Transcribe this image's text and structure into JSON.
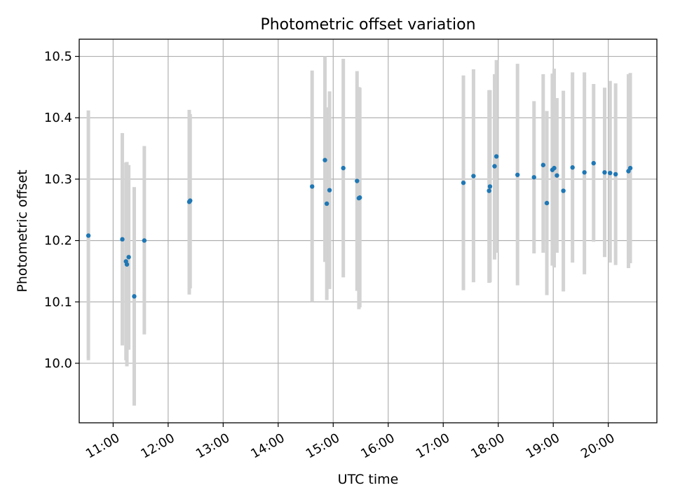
{
  "chart_data": {
    "type": "scatter",
    "title": "Photometric offset variation",
    "xlabel": "UTC time",
    "ylabel": "Photometric offset",
    "x_ticks": [
      "11:00",
      "12:00",
      "13:00",
      "14:00",
      "15:00",
      "16:00",
      "17:00",
      "18:00",
      "19:00",
      "20:00"
    ],
    "y_ticks": [
      "10.0",
      "10.1",
      "10.2",
      "10.3",
      "10.4",
      "10.5"
    ],
    "xlim": [
      "10:23",
      "20:53"
    ],
    "ylim": [
      9.903,
      10.528
    ],
    "grid": true,
    "colors": {
      "points": "#1f77b4",
      "errorbars": "#d3d3d3",
      "grid": "#b0b0b0"
    },
    "points": [
      {
        "time": "10:33",
        "value": 10.208,
        "low": 10.005,
        "high": 10.412
      },
      {
        "time": "11:10",
        "value": 10.202,
        "low": 10.029,
        "high": 10.375
      },
      {
        "time": "11:14",
        "value": 10.166,
        "low": 10.005,
        "high": 10.327
      },
      {
        "time": "11:15",
        "value": 10.161,
        "low": 9.995,
        "high": 10.328
      },
      {
        "time": "11:17",
        "value": 10.173,
        "low": 10.022,
        "high": 10.323
      },
      {
        "time": "11:23",
        "value": 10.109,
        "low": 9.931,
        "high": 10.287
      },
      {
        "time": "11:34",
        "value": 10.2,
        "low": 10.047,
        "high": 10.354
      },
      {
        "time": "12:23",
        "value": 10.263,
        "low": 10.112,
        "high": 10.413
      },
      {
        "time": "12:24",
        "value": 10.265,
        "low": 10.122,
        "high": 10.406
      },
      {
        "time": "14:37",
        "value": 10.288,
        "low": 10.1,
        "high": 10.477
      },
      {
        "time": "14:51",
        "value": 10.331,
        "low": 10.165,
        "high": 10.5
      },
      {
        "time": "14:53",
        "value": 10.26,
        "low": 10.103,
        "high": 10.417
      },
      {
        "time": "14:56",
        "value": 10.282,
        "low": 10.121,
        "high": 10.443
      },
      {
        "time": "15:11",
        "value": 10.318,
        "low": 10.14,
        "high": 10.496
      },
      {
        "time": "15:26",
        "value": 10.297,
        "low": 10.118,
        "high": 10.476
      },
      {
        "time": "15:28",
        "value": 10.269,
        "low": 10.088,
        "high": 10.45
      },
      {
        "time": "15:29",
        "value": 10.27,
        "low": 10.091,
        "high": 10.449
      },
      {
        "time": "17:22",
        "value": 10.294,
        "low": 10.119,
        "high": 10.469
      },
      {
        "time": "17:33",
        "value": 10.305,
        "low": 10.132,
        "high": 10.479
      },
      {
        "time": "17:50",
        "value": 10.281,
        "low": 10.131,
        "high": 10.445
      },
      {
        "time": "17:51",
        "value": 10.288,
        "low": 10.132,
        "high": 10.445
      },
      {
        "time": "17:56",
        "value": 10.321,
        "low": 10.169,
        "high": 10.471
      },
      {
        "time": "17:58",
        "value": 10.337,
        "low": 10.18,
        "high": 10.494
      },
      {
        "time": "18:21",
        "value": 10.307,
        "low": 10.127,
        "high": 10.488
      },
      {
        "time": "18:39",
        "value": 10.303,
        "low": 10.179,
        "high": 10.427
      },
      {
        "time": "18:49",
        "value": 10.323,
        "low": 10.18,
        "high": 10.471
      },
      {
        "time": "18:53",
        "value": 10.261,
        "low": 10.111,
        "high": 10.411
      },
      {
        "time": "18:59",
        "value": 10.315,
        "low": 10.159,
        "high": 10.472
      },
      {
        "time": "19:01",
        "value": 10.318,
        "low": 10.156,
        "high": 10.48
      },
      {
        "time": "19:04",
        "value": 10.306,
        "low": 10.18,
        "high": 10.432
      },
      {
        "time": "19:11",
        "value": 10.281,
        "low": 10.117,
        "high": 10.444
      },
      {
        "time": "19:21",
        "value": 10.319,
        "low": 10.164,
        "high": 10.474
      },
      {
        "time": "19:34",
        "value": 10.311,
        "low": 10.145,
        "high": 10.474
      },
      {
        "time": "19:44",
        "value": 10.326,
        "low": 10.198,
        "high": 10.455
      },
      {
        "time": "19:56",
        "value": 10.311,
        "low": 10.173,
        "high": 10.449
      },
      {
        "time": "20:02",
        "value": 10.31,
        "low": 10.164,
        "high": 10.46
      },
      {
        "time": "20:08",
        "value": 10.308,
        "low": 10.16,
        "high": 10.456
      },
      {
        "time": "20:22",
        "value": 10.313,
        "low": 10.155,
        "high": 10.471
      },
      {
        "time": "20:24",
        "value": 10.318,
        "low": 10.163,
        "high": 10.473
      }
    ]
  }
}
